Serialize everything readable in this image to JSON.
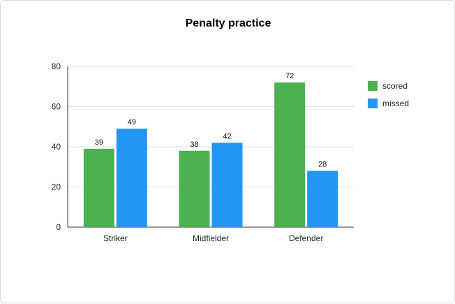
{
  "chart_data": {
    "type": "bar",
    "title": "Penalty practice",
    "xlabel": "",
    "ylabel": "",
    "categories": [
      "Striker",
      "Midfielder",
      "Defender"
    ],
    "series": [
      {
        "name": "scored",
        "values": [
          39,
          38,
          72
        ],
        "color": "#4caf50"
      },
      {
        "name": "missed",
        "values": [
          49,
          42,
          28
        ],
        "color": "#2196f3"
      }
    ],
    "ylim": [
      0,
      80
    ],
    "yticks": [
      0,
      20,
      40,
      60,
      80
    ],
    "grid": true,
    "legend_position": "right"
  }
}
